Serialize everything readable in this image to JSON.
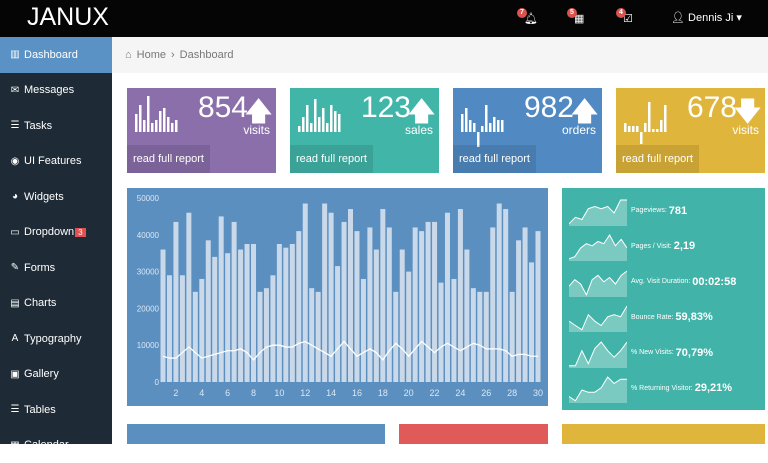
{
  "header": {
    "logo": "JANUX",
    "notifications": [
      {
        "icon": "bell-icon",
        "count": "7"
      },
      {
        "icon": "calendar-icon",
        "count": "5"
      },
      {
        "icon": "tasks-icon",
        "count": "4"
      }
    ],
    "user": "Dennis Ji"
  },
  "sidebar": {
    "items": [
      {
        "label": "Dashboard",
        "icon": "bar-chart-icon",
        "active": true
      },
      {
        "label": "Messages",
        "icon": "envelope-icon"
      },
      {
        "label": "Tasks",
        "icon": "tasks-icon"
      },
      {
        "label": "UI Features",
        "icon": "eye-icon"
      },
      {
        "label": "Widgets",
        "icon": "dashboard-icon"
      },
      {
        "label": "Dropdown",
        "icon": "folder-icon",
        "badge": "3"
      },
      {
        "label": "Forms",
        "icon": "edit-icon"
      },
      {
        "label": "Charts",
        "icon": "list-alt-icon"
      },
      {
        "label": "Typography",
        "icon": "font-icon"
      },
      {
        "label": "Gallery",
        "icon": "picture-icon"
      },
      {
        "label": "Tables",
        "icon": "table-icon"
      },
      {
        "label": "Calendar",
        "icon": "calendar-icon"
      }
    ]
  },
  "breadcrumb": {
    "home": "Home",
    "current": "Dashboard"
  },
  "cards": [
    {
      "value": "854",
      "label": "visits",
      "trend": "up",
      "color": "#8a6fab",
      "link": "read full report",
      "spark": [
        6,
        9,
        4,
        12,
        3,
        4,
        7,
        8,
        5,
        3,
        4
      ]
    },
    {
      "value": "123",
      "label": "sales",
      "trend": "up",
      "color": "#41b5a8",
      "link": "read full report",
      "spark": [
        2,
        5,
        9,
        3,
        11,
        5,
        8,
        3,
        9,
        7,
        6
      ]
    },
    {
      "value": "982",
      "label": "orders",
      "trend": "up",
      "color": "#5189c2",
      "link": "read full report",
      "spark": [
        6,
        8,
        4,
        3,
        -5,
        2,
        9,
        3,
        5,
        4,
        4
      ]
    },
    {
      "value": "678",
      "label": "visits",
      "trend": "down",
      "color": "#e0b53c",
      "link": "read full report",
      "spark": [
        3,
        2,
        2,
        2,
        -4,
        3,
        10,
        1,
        1,
        4,
        9
      ]
    }
  ],
  "chart_data": {
    "type": "bar",
    "ylim": [
      0,
      50000
    ],
    "yticks": [
      "0",
      "10000",
      "20000",
      "30000",
      "40000",
      "50000"
    ],
    "xticks": [
      "2",
      "4",
      "6",
      "8",
      "10",
      "12",
      "14",
      "16",
      "18",
      "20",
      "22",
      "24",
      "26",
      "28",
      "30"
    ],
    "xrange": [
      1,
      30
    ],
    "bars": [
      36000,
      29000,
      43500,
      29000,
      46000,
      24500,
      28000,
      38500,
      34000,
      45000,
      35000,
      43500,
      36000,
      37500,
      37500,
      24500,
      25500,
      29000,
      37500,
      36500,
      37500,
      41000,
      48500,
      25500,
      24500,
      48500,
      46000,
      31500,
      43500,
      47000,
      41000,
      28000,
      42000,
      36000,
      47000,
      42000,
      24500,
      36000,
      30000,
      42000,
      41000,
      43500,
      43500,
      27000,
      46000,
      28000,
      47000,
      36000,
      25500,
      24500,
      24500,
      42000,
      48500,
      47000,
      24500,
      38500,
      42000,
      32500,
      41000
    ],
    "line": [
      7000,
      6500,
      6500,
      8000,
      9500,
      8000,
      6500,
      7000,
      7500,
      8000,
      8500,
      8500,
      9000,
      8000,
      6000,
      8000,
      9500,
      10000,
      10000,
      9500,
      9500,
      10500,
      11000,
      10000,
      9000,
      8000,
      7000,
      9000,
      11000,
      9000,
      7000,
      8000,
      9000,
      8000,
      6000,
      8500,
      10500,
      9000,
      7000,
      9000,
      11000,
      9500,
      8000,
      9500,
      10500,
      9500,
      8500,
      9500,
      10500,
      10000,
      9000,
      9000,
      9000,
      8500,
      7000,
      7500,
      7500,
      7000,
      7000
    ]
  },
  "stats": [
    {
      "label": "Pageviews:",
      "value": "781",
      "spark": [
        1,
        4,
        3,
        8,
        9,
        8,
        9,
        6,
        12,
        12
      ]
    },
    {
      "label": "Pages / Visit:",
      "value": "2,19",
      "spark": [
        1,
        2,
        6,
        8,
        7,
        9,
        8,
        12,
        7,
        10,
        6
      ]
    },
    {
      "label": "Avg. Visit Duration:",
      "value": "00:02:58",
      "spark": [
        5,
        8,
        6,
        1,
        8,
        10,
        7,
        9,
        6,
        10,
        12
      ]
    },
    {
      "label": "Bounce Rate:",
      "value": "59,83%",
      "spark": [
        5,
        3,
        1,
        8,
        5,
        3,
        7,
        8,
        7,
        12
      ]
    },
    {
      "label": "% New Visits:",
      "value": "70,79%",
      "spark": [
        1,
        1,
        8,
        2,
        9,
        12,
        8,
        5,
        8,
        12
      ]
    },
    {
      "label": "% Returning Visitor:",
      "value": "29,21%",
      "spark": [
        3,
        1,
        6,
        5,
        5,
        7,
        12,
        9,
        11,
        11
      ]
    }
  ],
  "colors": {
    "chart_bg": "#5a8fc0",
    "stats_bg": "#41b3a8",
    "bottom": [
      "#5a8fc0",
      "#e05a5a",
      "#e0b53c"
    ]
  }
}
